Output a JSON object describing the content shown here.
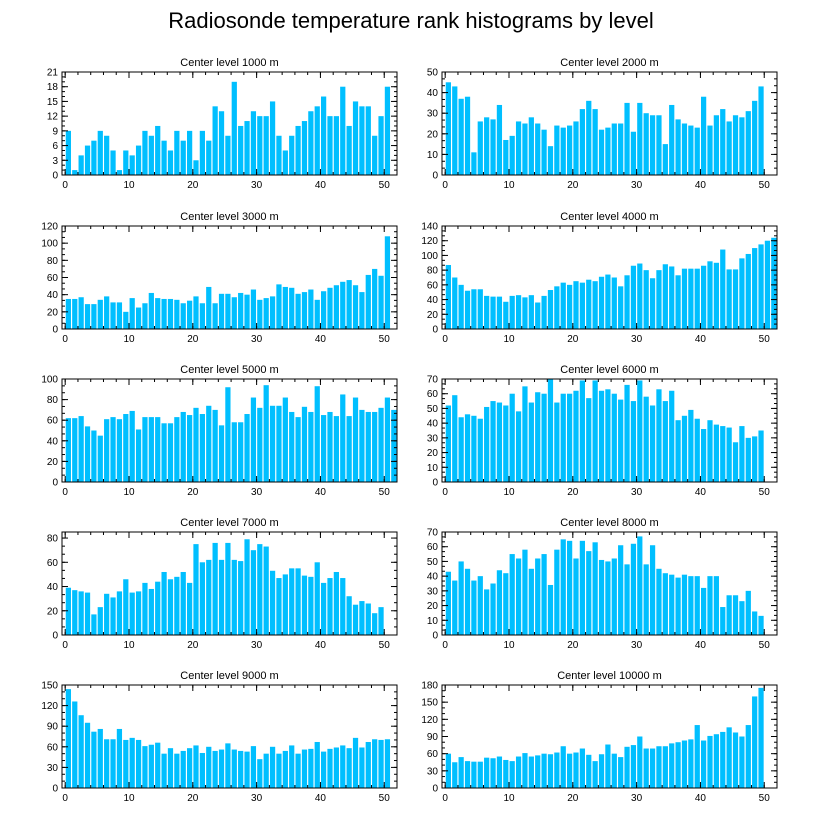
{
  "figure_title": "Radiosonde temperature rank histograms by level",
  "colors": {
    "bar": "#00BFFF",
    "axis": "#000000",
    "background": "#ffffff"
  },
  "chart_data": [
    {
      "type": "bar",
      "title": "Center level 1000 m",
      "x_ticks": [
        0,
        10,
        20,
        30,
        40,
        50
      ],
      "xlim": [
        -0.5,
        52
      ],
      "ylim": [
        0,
        21
      ],
      "y_ticks": [
        0,
        3,
        6,
        9,
        12,
        15,
        18,
        21
      ],
      "values": [
        9,
        1,
        4,
        6,
        7,
        9,
        8,
        5,
        1,
        5,
        4,
        6,
        9,
        8,
        10,
        7,
        5,
        9,
        7,
        9,
        3,
        9,
        7,
        14,
        13,
        8,
        19,
        10,
        11,
        13,
        12,
        12,
        15,
        8,
        5,
        8,
        10,
        11,
        13,
        14,
        16,
        12,
        12,
        18,
        10,
        15,
        14,
        14,
        8,
        12,
        18
      ]
    },
    {
      "type": "bar",
      "title": "Center level 2000 m",
      "x_ticks": [
        0,
        10,
        20,
        30,
        40,
        50
      ],
      "xlim": [
        -0.5,
        52
      ],
      "ylim": [
        0,
        50
      ],
      "y_ticks": [
        0,
        10,
        20,
        30,
        40,
        50
      ],
      "values": [
        45,
        43,
        37,
        38,
        11,
        26,
        28,
        27,
        34,
        17,
        19,
        26,
        25,
        28,
        25,
        22,
        14,
        24,
        23,
        24,
        26,
        32,
        36,
        32,
        22,
        23,
        25,
        25,
        35,
        21,
        35,
        30,
        29,
        29,
        15,
        34,
        27,
        25,
        24,
        23,
        38,
        24,
        29,
        32,
        26,
        29,
        28,
        31,
        36,
        43
      ]
    },
    {
      "type": "bar",
      "title": "Center level 3000 m",
      "x_ticks": [
        0,
        10,
        20,
        30,
        40,
        50
      ],
      "xlim": [
        -0.5,
        52
      ],
      "ylim": [
        0,
        120
      ],
      "y_ticks": [
        0,
        20,
        40,
        60,
        80,
        100,
        120
      ],
      "values": [
        35,
        35,
        37,
        29,
        29,
        34,
        38,
        31,
        31,
        20,
        36,
        25,
        30,
        42,
        36,
        35,
        35,
        34,
        30,
        33,
        38,
        30,
        49,
        30,
        41,
        41,
        37,
        42,
        40,
        46,
        34,
        36,
        38,
        52,
        49,
        48,
        41,
        43,
        46,
        34,
        44,
        48,
        51,
        55,
        57,
        51,
        43,
        63,
        70,
        62,
        108
      ]
    },
    {
      "type": "bar",
      "title": "Center level 4000 m",
      "x_ticks": [
        0,
        10,
        20,
        30,
        40,
        50
      ],
      "xlim": [
        -0.5,
        52
      ],
      "ylim": [
        0,
        140
      ],
      "y_ticks": [
        0,
        20,
        40,
        60,
        80,
        100,
        120,
        140
      ],
      "values": [
        87,
        70,
        60,
        52,
        54,
        54,
        45,
        44,
        44,
        37,
        45,
        46,
        43,
        46,
        36,
        45,
        53,
        58,
        63,
        60,
        65,
        63,
        67,
        65,
        71,
        74,
        70,
        58,
        73,
        86,
        89,
        80,
        69,
        80,
        88,
        85,
        73,
        82,
        82,
        82,
        86,
        92,
        90,
        108,
        81,
        81,
        96,
        102,
        110,
        115,
        120,
        124
      ]
    },
    {
      "type": "bar",
      "title": "Center level 5000 m",
      "x_ticks": [
        0,
        10,
        20,
        30,
        40,
        50
      ],
      "xlim": [
        -0.5,
        52
      ],
      "ylim": [
        0,
        100
      ],
      "y_ticks": [
        0,
        20,
        40,
        60,
        80,
        100
      ],
      "values": [
        62,
        62,
        64,
        54,
        50,
        45,
        61,
        63,
        61,
        66,
        69,
        51,
        63,
        63,
        63,
        57,
        57,
        63,
        68,
        65,
        72,
        66,
        74,
        70,
        55,
        92,
        58,
        58,
        66,
        82,
        72,
        94,
        74,
        74,
        82,
        68,
        63,
        73,
        68,
        93,
        65,
        68,
        64,
        85,
        64,
        82,
        70,
        68,
        68,
        72,
        82,
        70
      ]
    },
    {
      "type": "bar",
      "title": "Center level 6000 m",
      "x_ticks": [
        0,
        10,
        20,
        30,
        40,
        50
      ],
      "xlim": [
        -0.5,
        52
      ],
      "ylim": [
        0,
        70
      ],
      "y_ticks": [
        0,
        10,
        20,
        30,
        40,
        50,
        60,
        70
      ],
      "values": [
        52,
        59,
        44,
        46,
        45,
        43,
        51,
        55,
        54,
        52,
        60,
        48,
        65,
        54,
        61,
        60,
        70,
        54,
        60,
        60,
        62,
        69,
        57,
        69,
        62,
        63,
        60,
        56,
        66,
        55,
        69,
        58,
        52,
        63,
        55,
        62,
        42,
        45,
        49,
        43,
        36,
        42,
        39,
        38,
        37,
        27,
        38,
        30,
        31,
        35
      ]
    },
    {
      "type": "bar",
      "title": "Center level 7000 m",
      "x_ticks": [
        0,
        10,
        20,
        30,
        40,
        50
      ],
      "xlim": [
        -0.5,
        52
      ],
      "ylim": [
        0,
        85
      ],
      "y_ticks": [
        0,
        20,
        40,
        60,
        80
      ],
      "values": [
        39,
        37,
        36,
        35,
        17,
        23,
        34,
        31,
        36,
        46,
        35,
        36,
        43,
        38,
        44,
        52,
        46,
        48,
        52,
        43,
        75,
        60,
        62,
        76,
        62,
        76,
        62,
        61,
        79,
        70,
        75,
        73,
        53,
        47,
        50,
        55,
        55,
        49,
        48,
        60,
        43,
        47,
        52,
        47,
        32,
        25,
        28,
        26,
        18,
        23
      ]
    },
    {
      "type": "bar",
      "title": "Center level 8000 m",
      "x_ticks": [
        0,
        10,
        20,
        30,
        40,
        50
      ],
      "xlim": [
        -0.5,
        52
      ],
      "ylim": [
        0,
        70
      ],
      "y_ticks": [
        0,
        10,
        20,
        30,
        40,
        50,
        60,
        70
      ],
      "values": [
        43,
        37,
        50,
        45,
        37,
        40,
        31,
        35,
        44,
        42,
        55,
        52,
        58,
        45,
        52,
        55,
        34,
        58,
        65,
        64,
        52,
        64,
        57,
        63,
        51,
        50,
        52,
        61,
        48,
        62,
        67,
        48,
        61,
        45,
        42,
        41,
        39,
        41,
        40,
        40,
        32,
        40,
        40,
        19,
        27,
        27,
        23,
        30,
        16,
        13
      ]
    },
    {
      "type": "bar",
      "title": "Center level 9000 m",
      "x_ticks": [
        0,
        10,
        20,
        30,
        40,
        50
      ],
      "xlim": [
        -0.5,
        52
      ],
      "ylim": [
        0,
        150
      ],
      "y_ticks": [
        0,
        30,
        60,
        90,
        120,
        150
      ],
      "values": [
        144,
        126,
        106,
        95,
        82,
        86,
        71,
        71,
        86,
        70,
        73,
        70,
        61,
        63,
        66,
        50,
        58,
        50,
        54,
        58,
        62,
        51,
        60,
        54,
        56,
        65,
        56,
        54,
        53,
        61,
        42,
        50,
        60,
        50,
        54,
        62,
        50,
        56,
        57,
        67,
        53,
        57,
        59,
        62,
        58,
        73,
        59,
        67,
        71,
        70,
        71
      ]
    },
    {
      "type": "bar",
      "title": "Center level 10000 m",
      "x_ticks": [
        0,
        10,
        20,
        30,
        40,
        50
      ],
      "xlim": [
        -0.5,
        52
      ],
      "ylim": [
        0,
        180
      ],
      "y_ticks": [
        0,
        30,
        60,
        90,
        120,
        150,
        180
      ],
      "values": [
        60,
        45,
        54,
        47,
        46,
        46,
        53,
        52,
        55,
        49,
        47,
        55,
        61,
        55,
        57,
        60,
        59,
        62,
        73,
        60,
        62,
        69,
        58,
        47,
        59,
        76,
        60,
        54,
        72,
        75,
        90,
        69,
        69,
        73,
        73,
        78,
        80,
        83,
        85,
        110,
        83,
        91,
        94,
        98,
        106,
        97,
        90,
        110,
        160,
        175
      ]
    }
  ]
}
